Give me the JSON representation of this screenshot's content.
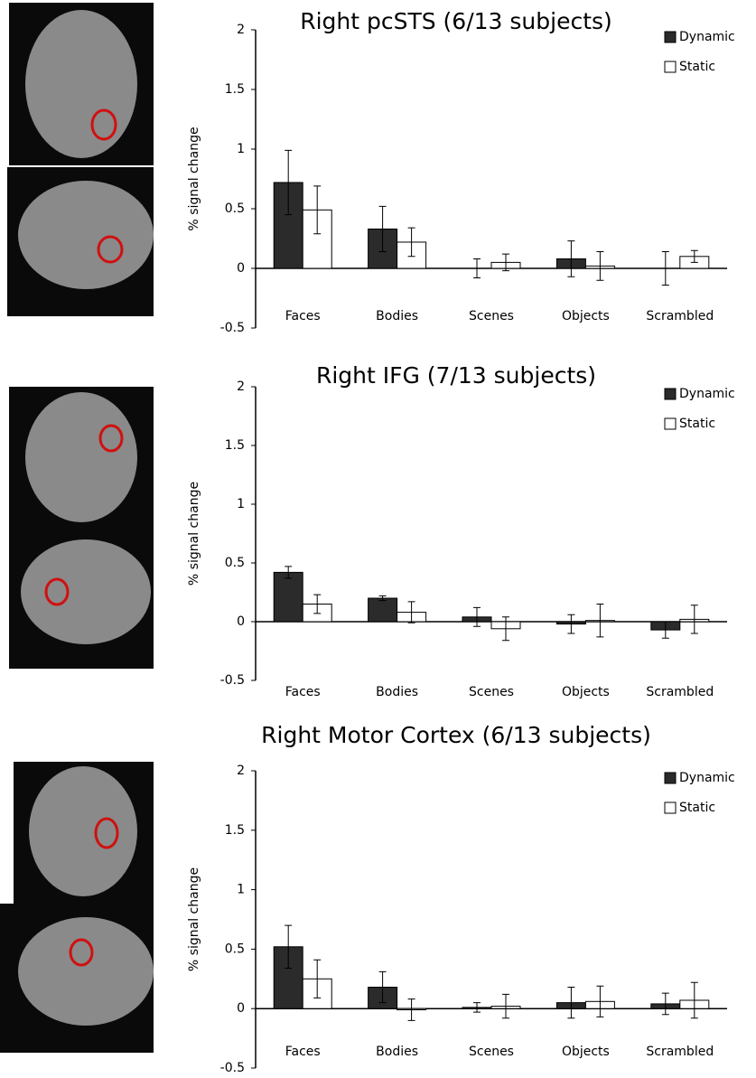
{
  "chart_data": [
    {
      "type": "bar",
      "title": "Right pcSTS (6/13 subjects)",
      "y_label": "% signal change",
      "categories": [
        "Faces",
        "Bodies",
        "Scenes",
        "Objects",
        "Scrambled"
      ],
      "series": [
        {
          "name": "Dynamic",
          "color": "#2b2b2b",
          "values": [
            0.72,
            0.33,
            0.0,
            0.08,
            0.0
          ],
          "errors": [
            0.27,
            0.19,
            0.08,
            0.15,
            0.14
          ]
        },
        {
          "name": "Static",
          "color": "#ffffff",
          "values": [
            0.49,
            0.22,
            0.05,
            0.02,
            0.1
          ],
          "errors": [
            0.2,
            0.12,
            0.07,
            0.12,
            0.05
          ]
        }
      ],
      "ylim": [
        -0.5,
        2
      ],
      "yticks": [
        -0.5,
        0,
        0.5,
        1,
        1.5,
        2
      ],
      "legend": "upper right"
    },
    {
      "type": "bar",
      "title": "Right IFG (7/13 subjects)",
      "y_label": "% signal change",
      "categories": [
        "Faces",
        "Bodies",
        "Scenes",
        "Objects",
        "Scrambled"
      ],
      "series": [
        {
          "name": "Dynamic",
          "color": "#2b2b2b",
          "values": [
            0.42,
            0.2,
            0.04,
            -0.02,
            -0.07
          ],
          "errors": [
            0.05,
            0.02,
            0.08,
            0.08,
            0.07
          ]
        },
        {
          "name": "Static",
          "color": "#ffffff",
          "values": [
            0.15,
            0.08,
            -0.06,
            0.01,
            0.02
          ],
          "errors": [
            0.08,
            0.09,
            0.1,
            0.14,
            0.12
          ]
        }
      ],
      "ylim": [
        -0.5,
        2
      ],
      "yticks": [
        -0.5,
        0,
        0.5,
        1,
        1.5,
        2
      ],
      "legend": "upper right"
    },
    {
      "type": "bar",
      "title": "Right Motor Cortex (6/13 subjects)",
      "y_label": "% signal change",
      "categories": [
        "Faces",
        "Bodies",
        "Scenes",
        "Objects",
        "Scrambled"
      ],
      "series": [
        {
          "name": "Dynamic",
          "color": "#2b2b2b",
          "values": [
            0.52,
            0.18,
            0.01,
            0.05,
            0.04
          ],
          "errors": [
            0.18,
            0.13,
            0.04,
            0.13,
            0.09
          ]
        },
        {
          "name": "Static",
          "color": "#ffffff",
          "values": [
            0.25,
            -0.01,
            0.02,
            0.06,
            0.07
          ],
          "errors": [
            0.16,
            0.09,
            0.1,
            0.13,
            0.15
          ]
        }
      ],
      "ylim": [
        -0.5,
        2
      ],
      "yticks": [
        -0.5,
        0,
        0.5,
        1,
        1.5,
        2
      ],
      "legend": "upper right"
    }
  ]
}
